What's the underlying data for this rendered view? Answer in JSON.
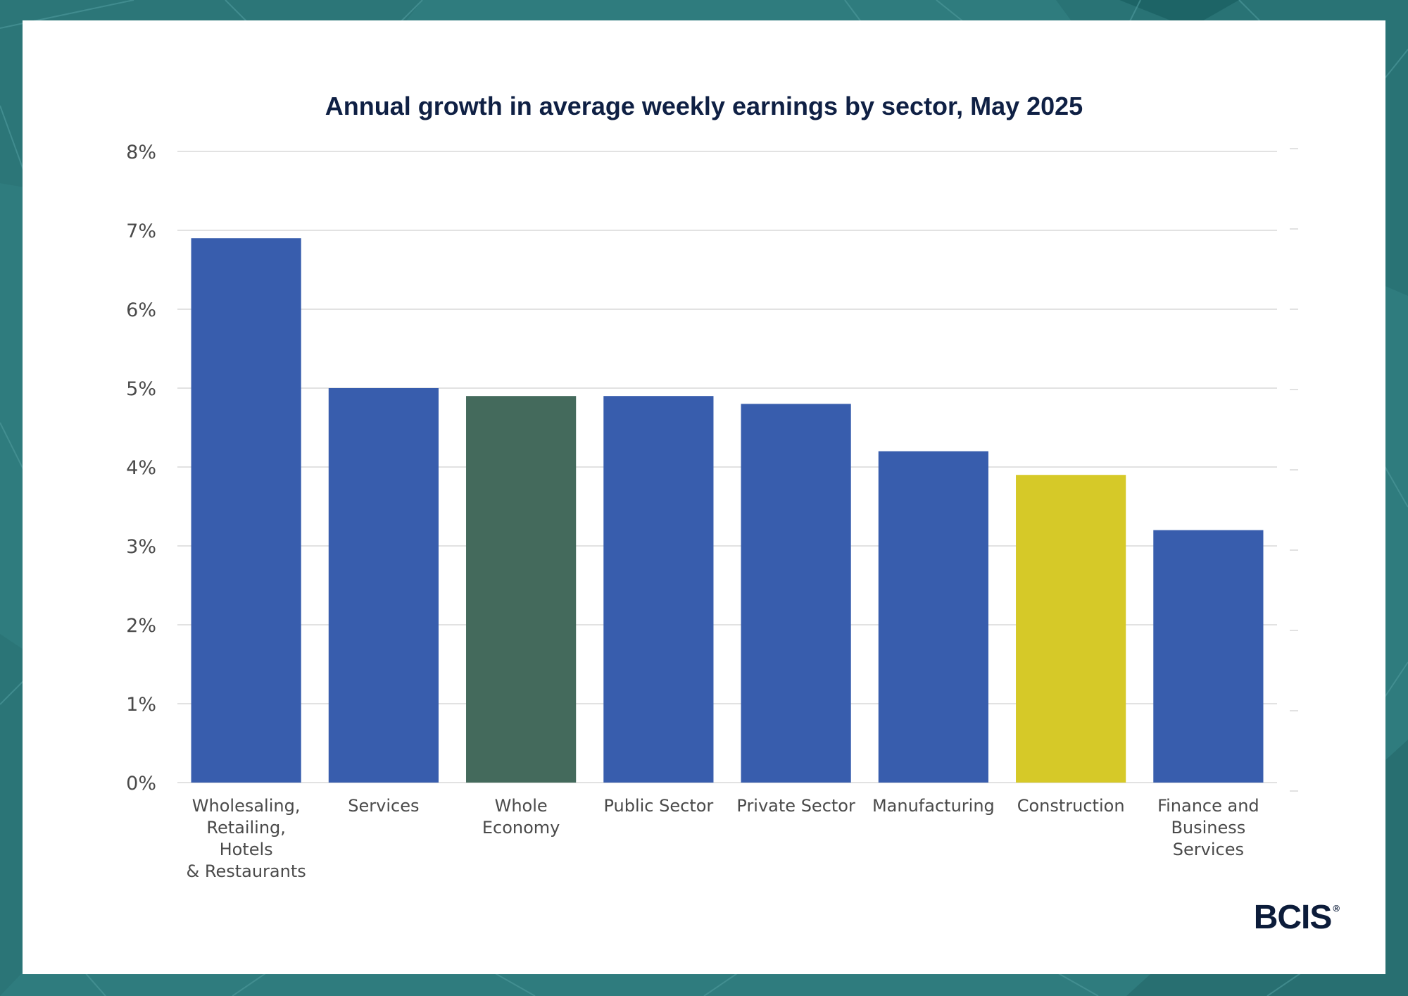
{
  "brand": {
    "name": "BCIS",
    "registered_mark": "®",
    "text_color": "#0c1c3a"
  },
  "colors": {
    "frame": "#2f7c7e",
    "frame_lines": "#4a9698",
    "card": "#ffffff",
    "title": "#0f2044",
    "tick_text": "#4a4a4a",
    "gridline": "#d9d9d9",
    "bar_default": "#385dad",
    "bar_whole_economy": "#446a5c",
    "bar_construction": "#d6c928"
  },
  "chart_data": {
    "type": "bar",
    "title": "Annual growth in average weekly earnings by sector, May 2025",
    "xlabel": "",
    "ylabel": "",
    "ylim": [
      0,
      8
    ],
    "y_ticks": [
      "0%",
      "1%",
      "2%",
      "3%",
      "4%",
      "5%",
      "6%",
      "7%",
      "8%"
    ],
    "grid": true,
    "legend": "none",
    "categories": [
      [
        "Wholesaling,",
        "Retailing,",
        "Hotels",
        "& Restaurants"
      ],
      [
        "Services"
      ],
      [
        "Whole",
        "Economy"
      ],
      [
        "Public Sector"
      ],
      [
        "Private Sector"
      ],
      [
        "Manufacturing"
      ],
      [
        "Construction"
      ],
      [
        "Finance and",
        "Business",
        "Services"
      ]
    ],
    "values": [
      6.9,
      5.0,
      4.9,
      4.9,
      4.8,
      4.2,
      3.9,
      3.2
    ],
    "bar_colors": [
      "#385dad",
      "#385dad",
      "#446a5c",
      "#385dad",
      "#385dad",
      "#385dad",
      "#d6c928",
      "#385dad"
    ]
  }
}
